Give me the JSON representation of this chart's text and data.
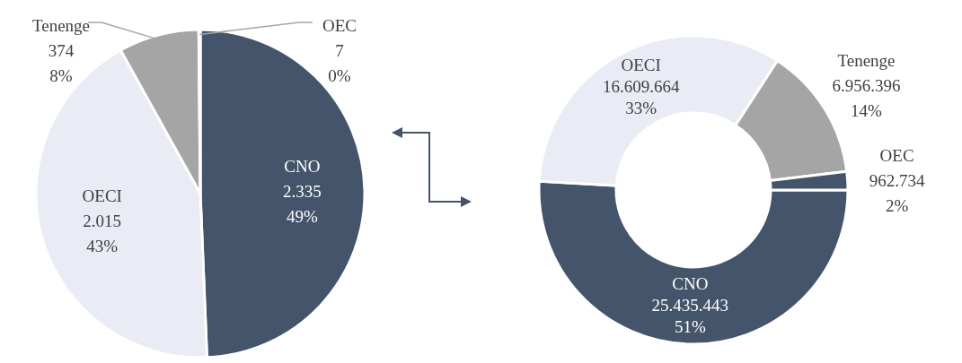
{
  "chart_data": [
    {
      "type": "pie",
      "categories": [
        "CNO",
        "OECI",
        "Tenenge",
        "OEC"
      ],
      "values": [
        2335,
        2015,
        374,
        7
      ],
      "colors": [
        "#44546a",
        "#e9ebf5",
        "#a5a5a5",
        "#44546a"
      ],
      "value_labels": [
        "2.335\n49%",
        "2.015\n43%",
        "374\n8%",
        "7\n0%"
      ]
    },
    {
      "type": "donut",
      "categories": [
        "CNO",
        "OECI",
        "Tenenge",
        "OEC"
      ],
      "values": [
        25435443,
        16609664,
        6956396,
        962734
      ],
      "colors": [
        "#44546a",
        "#e9ebf5",
        "#a5a5a5",
        "#44546a"
      ],
      "value_labels": [
        "25.435.443\n51%",
        "16.609.664\n33%",
        "6.956.396\n14%",
        "962.734\n2%"
      ]
    }
  ]
}
